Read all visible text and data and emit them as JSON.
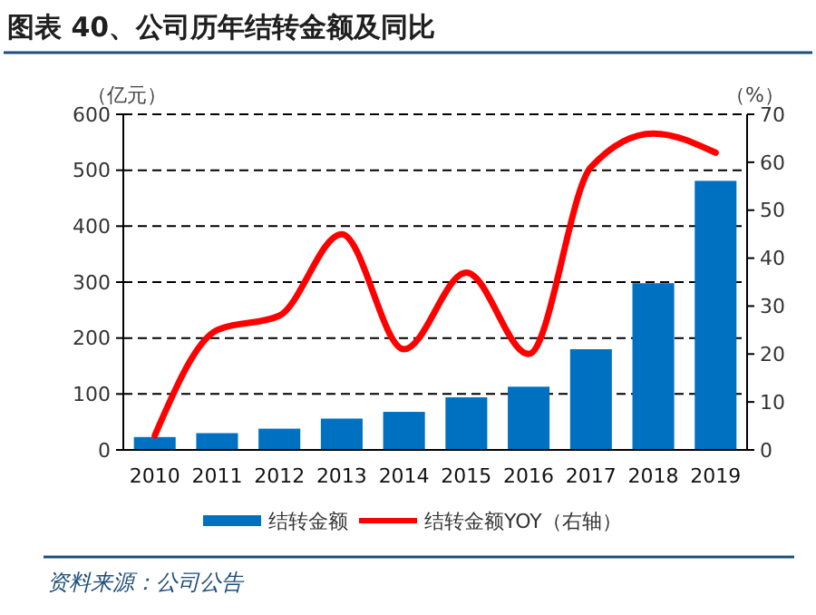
{
  "chart_data": {
    "type": "bar",
    "title": "图表 40、公司历年结转金额及同比",
    "ylabel": "（亿元）",
    "y2label": "（%）",
    "categories": [
      "2010",
      "2011",
      "2012",
      "2013",
      "2014",
      "2015",
      "2016",
      "2017",
      "2018",
      "2019"
    ],
    "series": [
      {
        "name": "结转金额",
        "color": "#0070c0",
        "values": [
          23,
          30,
          38,
          56,
          68,
          94,
          113,
          180,
          298,
          481
        ]
      },
      {
        "name": "结转金额YOY（右轴）",
        "type": "line",
        "axis": "y2",
        "color": "#ff0000",
        "values": [
          3,
          25,
          28,
          45,
          21,
          37,
          20,
          59,
          66,
          62
        ]
      }
    ],
    "ylim": [
      0,
      600
    ],
    "yticks": [
      0,
      100,
      200,
      300,
      400,
      500,
      600
    ],
    "y2lim": [
      0,
      70
    ],
    "y2ticks": [
      0,
      10,
      20,
      30,
      40,
      50,
      60,
      70
    ],
    "grid": "y",
    "legend": "bottom",
    "line_style": "solid",
    "marker": "none",
    "annotations": [
      "资料来源：公司公告"
    ]
  }
}
